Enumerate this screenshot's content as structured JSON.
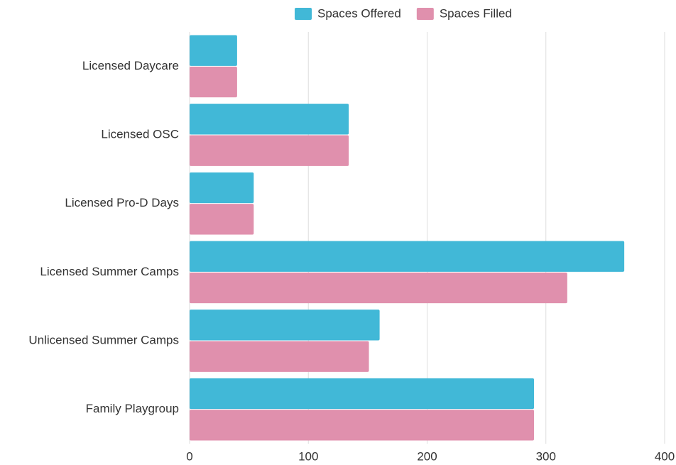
{
  "chart_data": {
    "type": "hbar",
    "categories": [
      "Licensed Daycare",
      "Licensed OSC",
      "Licensed Pro-D Days",
      "Licensed Summer Camps",
      "Unlicensed Summer Camps",
      "Family Playgroup"
    ],
    "series": [
      {
        "name": "Spaces Offered",
        "color": "#41b8d7",
        "values": [
          40,
          134,
          54,
          366,
          160,
          290
        ]
      },
      {
        "name": "Spaces Filled",
        "color": "#e090ad",
        "values": [
          40,
          134,
          54,
          318,
          151,
          290
        ]
      }
    ],
    "xlim": [
      0,
      400
    ],
    "xticks": [
      0,
      100,
      200,
      300,
      400
    ],
    "grid": true,
    "legend": "top"
  }
}
